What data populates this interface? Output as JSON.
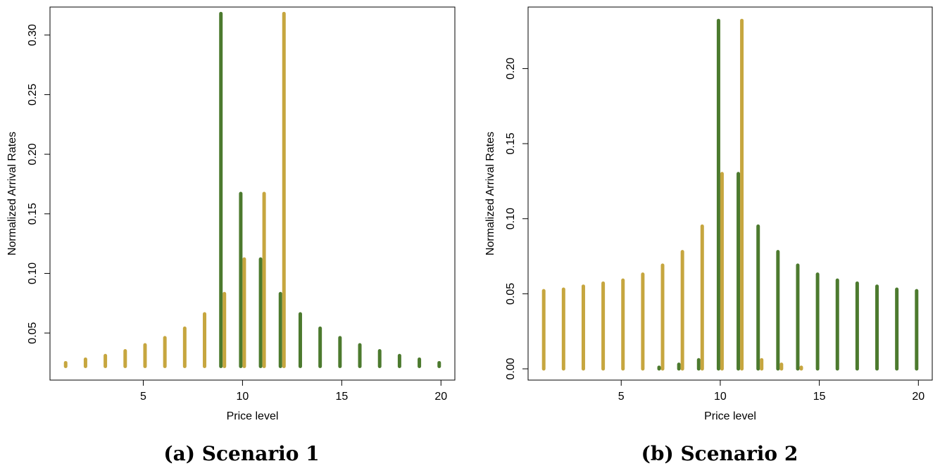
{
  "colors": {
    "series_green": "#4c7a2e",
    "series_gold": "#c6a63f"
  },
  "chart_data": [
    {
      "type": "bar",
      "caption": "(a) Scenario 1",
      "xlabel": "Price level",
      "ylabel": "Normalized Arrival Rates",
      "xlim": [
        0.3,
        20.7
      ],
      "ylim": [
        0.0105,
        0.3235
      ],
      "xticks": [
        5,
        10,
        15,
        20
      ],
      "yticks": [
        0.05,
        0.1,
        0.15,
        0.2,
        0.25,
        0.3
      ],
      "ytick_labels": [
        "0.05",
        "0.10",
        "0.15",
        "0.20",
        "0.25",
        "0.30"
      ],
      "grid": false,
      "baseline": 0.022,
      "series": [
        {
          "color": "green",
          "x": [
            9,
            10,
            11,
            12,
            13,
            14,
            15,
            16,
            17,
            18,
            19,
            20
          ],
          "values": [
            0.318,
            0.167,
            0.112,
            0.083,
            0.066,
            0.054,
            0.046,
            0.04,
            0.035,
            0.031,
            0.028,
            0.025
          ]
        },
        {
          "color": "gold",
          "x": [
            1,
            2,
            3,
            4,
            5,
            6,
            7,
            8,
            9,
            10,
            11,
            12
          ],
          "values": [
            0.025,
            0.028,
            0.031,
            0.035,
            0.04,
            0.046,
            0.054,
            0.066,
            0.083,
            0.112,
            0.167,
            0.318
          ]
        }
      ]
    },
    {
      "type": "bar",
      "caption": "(b) Scenario 2",
      "xlabel": "Price level",
      "ylabel": "Normalized Arrival Rates",
      "xlim": [
        0.3,
        20.7
      ],
      "ylim": [
        -0.0075,
        0.241
      ],
      "xticks": [
        5,
        10,
        15,
        20
      ],
      "yticks": [
        0.0,
        0.05,
        0.1,
        0.15,
        0.2
      ],
      "ytick_labels": [
        "0.00",
        "0.05",
        "0.10",
        "0.15",
        "0.20"
      ],
      "grid": false,
      "baseline": 0.0,
      "series": [
        {
          "color": "green",
          "x": [
            7,
            8,
            9,
            10,
            11,
            12,
            13,
            14,
            15,
            16,
            17,
            18,
            19,
            20
          ],
          "values": [
            0.001,
            0.003,
            0.006,
            0.232,
            0.13,
            0.095,
            0.078,
            0.069,
            0.063,
            0.059,
            0.057,
            0.055,
            0.053,
            0.052
          ]
        },
        {
          "color": "gold",
          "x": [
            1,
            2,
            3,
            4,
            5,
            6,
            7,
            8,
            9,
            10,
            11,
            12,
            13,
            14
          ],
          "values": [
            0.052,
            0.053,
            0.055,
            0.057,
            0.059,
            0.063,
            0.069,
            0.078,
            0.095,
            0.13,
            0.232,
            0.006,
            0.003,
            0.001
          ]
        }
      ]
    }
  ]
}
